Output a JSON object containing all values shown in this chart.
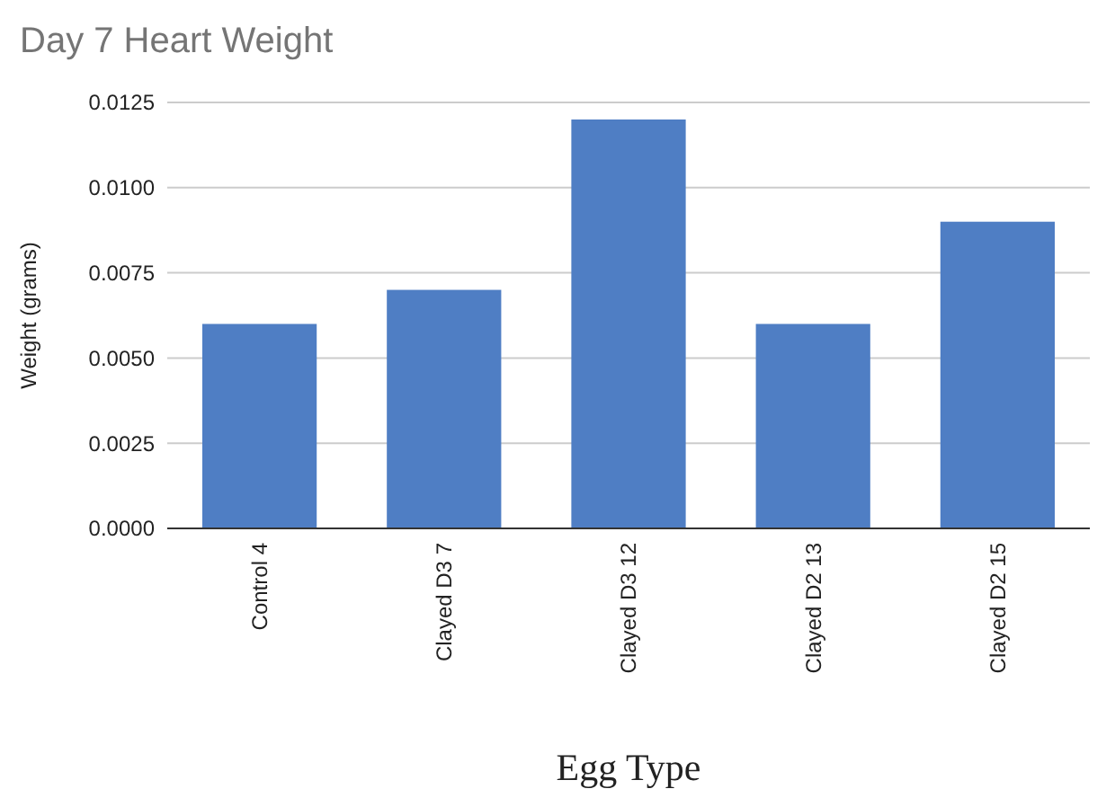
{
  "chart_data": {
    "type": "bar",
    "title": "Day 7 Heart Weight",
    "xlabel": "Egg Type",
    "ylabel": "Weight (grams)",
    "categories": [
      "Control 4",
      "Clayed D3 7",
      "Clayed D3 12",
      "Clayed D2 13",
      "Clayed D2 15"
    ],
    "series": [
      {
        "color": "#4f7ec4",
        "values": [
          0.006,
          0.007,
          0.012,
          0.006,
          0.009
        ]
      }
    ],
    "ylim": [
      0,
      0.0125
    ],
    "yticks": [
      {
        "value": 0,
        "label": "0.0000"
      },
      {
        "value": 0.0025,
        "label": "0.0025"
      },
      {
        "value": 0.005,
        "label": "0.0050"
      },
      {
        "value": 0.0075,
        "label": "0.0075"
      },
      {
        "value": 0.01,
        "label": "0.0100"
      },
      {
        "value": 0.0125,
        "label": "0.0125"
      }
    ],
    "grid": "y"
  }
}
